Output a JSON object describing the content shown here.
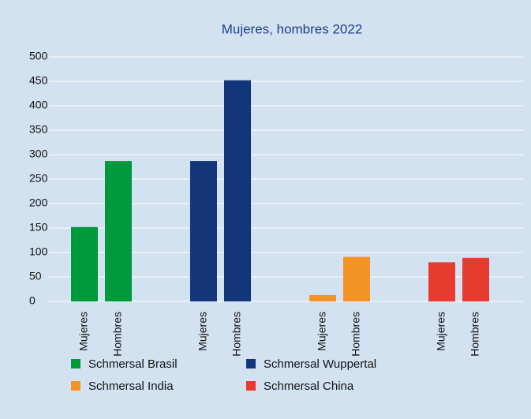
{
  "chart_data": {
    "type": "bar",
    "title": "Mujeres, hombres 2022",
    "categories": [
      "Mujeres",
      "Hombres"
    ],
    "series": [
      {
        "name": "Schmersal Brasil",
        "color": "#009a3e",
        "values": [
          152,
          287
        ]
      },
      {
        "name": "Schmersal Wuppertal",
        "color": "#13357a",
        "values": [
          287,
          452
        ]
      },
      {
        "name": "Schmersal India",
        "color": "#f39325",
        "values": [
          13,
          91
        ]
      },
      {
        "name": "Schmersal China",
        "color": "#e63b2e",
        "values": [
          80,
          89
        ]
      }
    ],
    "ylim": [
      0,
      500
    ],
    "yticks": [
      0,
      50,
      100,
      150,
      200,
      250,
      300,
      350,
      400,
      450,
      500
    ],
    "grid": true
  }
}
